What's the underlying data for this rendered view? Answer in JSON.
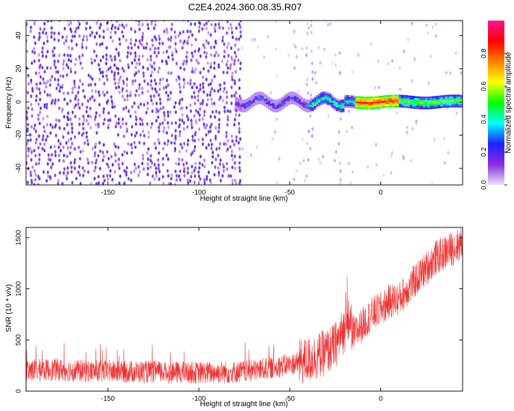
{
  "title": "C2E4.2024.360.08.35.R07",
  "chart_data": [
    {
      "type": "heatmap",
      "panel": "top",
      "xlabel": "Height of straight line (km)",
      "ylabel": "Frequency (Hz)",
      "xlim": [
        -195,
        45
      ],
      "ylim": [
        -50,
        49
      ],
      "xticks": [
        -150,
        -100,
        -50,
        0
      ],
      "yticks": [
        -40,
        -20,
        0,
        20,
        40
      ],
      "colorbar": {
        "label": "Normalized spectral amplitude",
        "range": [
          0.0,
          1.0
        ],
        "ticks": [
          0.0,
          0.2,
          0.4,
          0.6,
          0.8
        ],
        "tick_labels": [
          "0.0",
          "0.2",
          "0.4",
          "0.6",
          "0.8"
        ],
        "colormap": [
          "#e6e6fa",
          "#8a2be2",
          "#2020ff",
          "#00ffff",
          "#00ff00",
          "#ffff00",
          "#ff8000",
          "#ff0000",
          "#ff1493"
        ]
      },
      "features": {
        "background_noise_until_km": -78,
        "signal_line_frequency_hz": 0,
        "signal_start_km": -80,
        "peak_region_km": [
          -15,
          10
        ],
        "sparse_noise_columns_km": [
          -40,
          -23
        ]
      }
    },
    {
      "type": "line",
      "panel": "bottom",
      "xlabel": "Height of straight line (km)",
      "ylabel": "SNR (10 * v/v)",
      "xlim": [
        -195,
        45
      ],
      "ylim": [
        0,
        1600
      ],
      "xticks": [
        -150,
        -100,
        -50,
        0
      ],
      "yticks": [
        0,
        500,
        1000,
        1500
      ],
      "color": "#ee3030",
      "series": [
        {
          "x": [
            -195,
            -180,
            -160,
            -140,
            -120,
            -100,
            -80,
            -70,
            -60,
            -50,
            -40,
            -30,
            -25,
            -20,
            -17,
            -15,
            -10,
            -5,
            0,
            5,
            10,
            15,
            20,
            25,
            30,
            35,
            40,
            45
          ],
          "values": [
            200,
            210,
            195,
            190,
            185,
            180,
            185,
            200,
            230,
            260,
            300,
            380,
            450,
            600,
            700,
            550,
            650,
            750,
            800,
            880,
            900,
            1000,
            1100,
            1200,
            1300,
            1350,
            1400,
            1450
          ]
        }
      ]
    }
  ]
}
